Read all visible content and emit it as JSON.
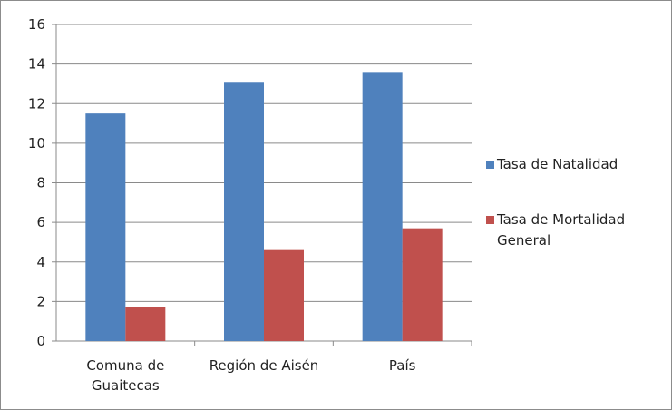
{
  "chart_data": {
    "type": "bar",
    "title": "",
    "categories": [
      [
        "Comuna de",
        "Guaitecas"
      ],
      [
        "Región de Aisén"
      ],
      [
        "País"
      ]
    ],
    "series": [
      {
        "name": "Tasa de Natalidad",
        "color": "#4f81bd",
        "values": [
          11.5,
          13.1,
          13.6
        ]
      },
      {
        "name": "Tasa de Mortalidad General",
        "name_lines": [
          "Tasa de Mortalidad",
          "General"
        ],
        "color": "#c0504d",
        "values": [
          1.7,
          4.6,
          5.7
        ]
      }
    ],
    "ylim": [
      0,
      16
    ],
    "yticks": [
      0,
      2,
      4,
      6,
      8,
      10,
      12,
      14,
      16
    ],
    "grid": true,
    "legend_position": "right",
    "xlabel": "",
    "ylabel": ""
  }
}
